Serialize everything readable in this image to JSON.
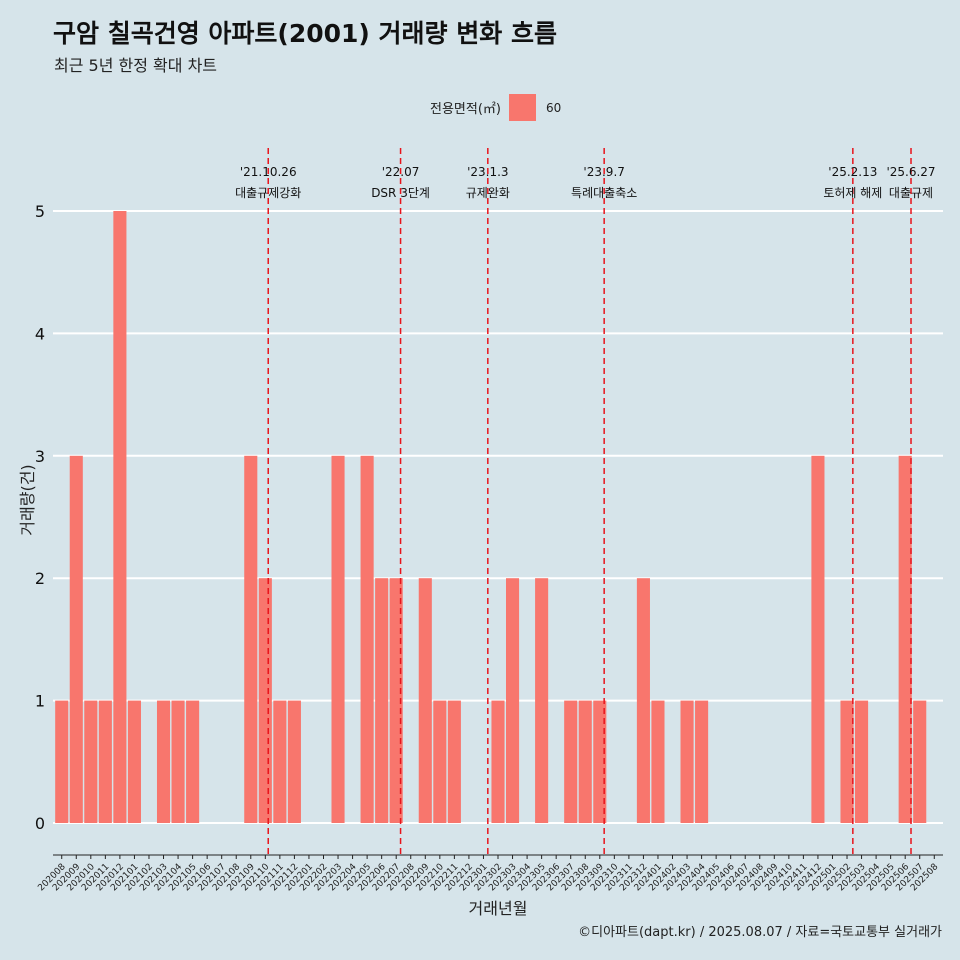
{
  "title": "구암 칠곡건영 아파트(2001) 거래량 변화 흐름",
  "subtitle": "최근 5년 한정 확대 차트",
  "caption": "©디아파트(dapt.kr) / 2025.08.07 / 자료=국토교통부 실거래가",
  "legend": {
    "title": "전용면적(㎡)",
    "item": "60"
  },
  "colors": {
    "background": "#d6e4ea",
    "bar": "#f8766d",
    "event_line": "#e8141c",
    "grid": "#ffffff"
  },
  "chart_data": {
    "type": "bar",
    "xlabel": "거래년월",
    "ylabel": "거래량(건)",
    "ylim": [
      0,
      5
    ],
    "y_ticks": [
      0,
      1,
      2,
      3,
      4,
      5
    ],
    "grid": true,
    "legend_position": "top",
    "categories": [
      "202008",
      "202009",
      "202010",
      "202011",
      "202012",
      "202101",
      "202102",
      "202103",
      "202104",
      "202105",
      "202106",
      "202107",
      "202108",
      "202109",
      "202110",
      "202111",
      "202112",
      "202201",
      "202202",
      "202203",
      "202204",
      "202205",
      "202206",
      "202207",
      "202208",
      "202209",
      "202210",
      "202211",
      "202212",
      "202301",
      "202302",
      "202303",
      "202304",
      "202305",
      "202306",
      "202307",
      "202308",
      "202309",
      "202310",
      "202311",
      "202312",
      "202401",
      "202402",
      "202403",
      "202404",
      "202405",
      "202406",
      "202407",
      "202408",
      "202409",
      "202410",
      "202411",
      "202412",
      "202501",
      "202502",
      "202503",
      "202504",
      "202505",
      "202506",
      "202507",
      "202508"
    ],
    "series": [
      {
        "name": "60",
        "values": [
          1,
          3,
          1,
          1,
          5,
          1,
          0,
          1,
          1,
          1,
          0,
          0,
          0,
          3,
          2,
          1,
          1,
          0,
          0,
          3,
          0,
          3,
          2,
          2,
          0,
          2,
          1,
          1,
          0,
          0,
          1,
          2,
          0,
          2,
          0,
          1,
          1,
          1,
          0,
          0,
          2,
          1,
          0,
          1,
          1,
          0,
          0,
          0,
          0,
          0,
          0,
          0,
          3,
          0,
          1,
          1,
          0,
          0,
          3,
          1,
          0
        ]
      }
    ],
    "events": [
      {
        "date": "'21.10.26",
        "label": "대출규제강화",
        "x": 14.2
      },
      {
        "date": "'22.07",
        "label": "DSR 3단계",
        "x": 23.3
      },
      {
        "date": "'23.1.3",
        "label": "규제완화",
        "x": 29.3
      },
      {
        "date": "'23.9.7",
        "label": "특례대출축소",
        "x": 37.3
      },
      {
        "date": "'25.2.13",
        "label": "토허제 해제",
        "x": 54.4
      },
      {
        "date": "'25.6.27",
        "label": "대출규제",
        "x": 58.4
      }
    ]
  }
}
